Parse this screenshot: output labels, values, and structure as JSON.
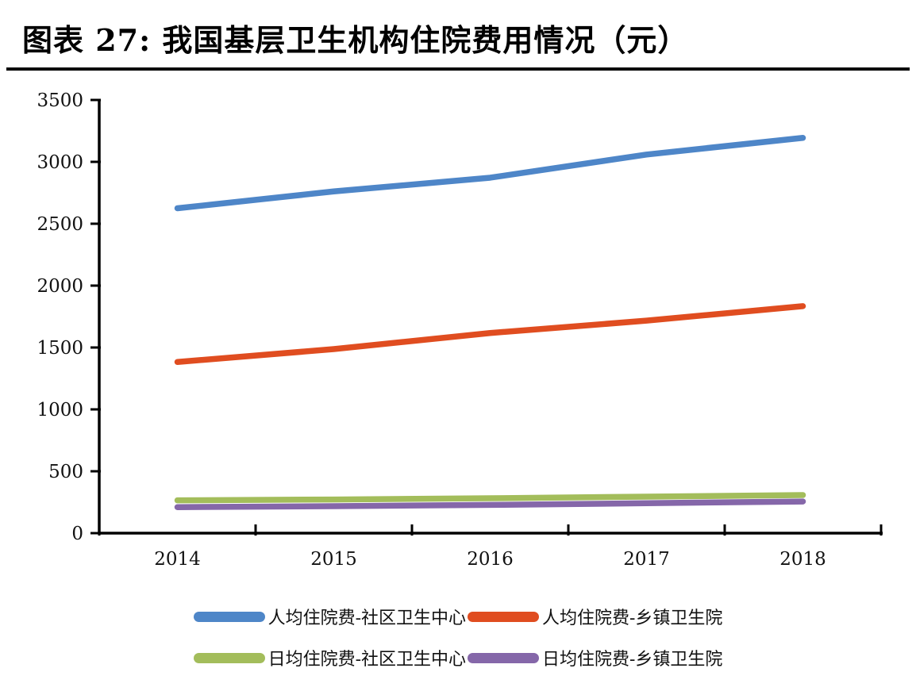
{
  "title": "图表 27: 我国基层卫生机构住院费用情况（元）",
  "chart_data": {
    "type": "line",
    "x": [
      "2014",
      "2015",
      "2016",
      "2017",
      "2018"
    ],
    "series": [
      {
        "name": "人均住院费-社区卫生中心",
        "color": "#4E86C8",
        "values": [
          2625,
          2761,
          2872,
          3059,
          3194
        ]
      },
      {
        "name": "人均住院费-乡镇卫生院",
        "color": "#E04D20",
        "values": [
          1383,
          1487,
          1617,
          1717,
          1834
        ]
      },
      {
        "name": "日均住院费-社区卫生中心",
        "color": "#A3BD5B",
        "values": [
          265,
          272,
          282,
          295,
          308
        ]
      },
      {
        "name": "日均住院费-乡镇卫生院",
        "color": "#8567A9",
        "values": [
          210,
          218,
          228,
          242,
          256
        ]
      }
    ],
    "title": "",
    "xlabel": "",
    "ylabel": "",
    "ylim": [
      0,
      3500
    ],
    "ytick_step": 500,
    "grid": false,
    "legend_position": "bottom"
  },
  "axes": {
    "y_ticks": [
      "0",
      "500",
      "1000",
      "1500",
      "2000",
      "2500",
      "3000",
      "3500"
    ],
    "x_ticks": [
      "2014",
      "2015",
      "2016",
      "2017",
      "2018"
    ]
  }
}
